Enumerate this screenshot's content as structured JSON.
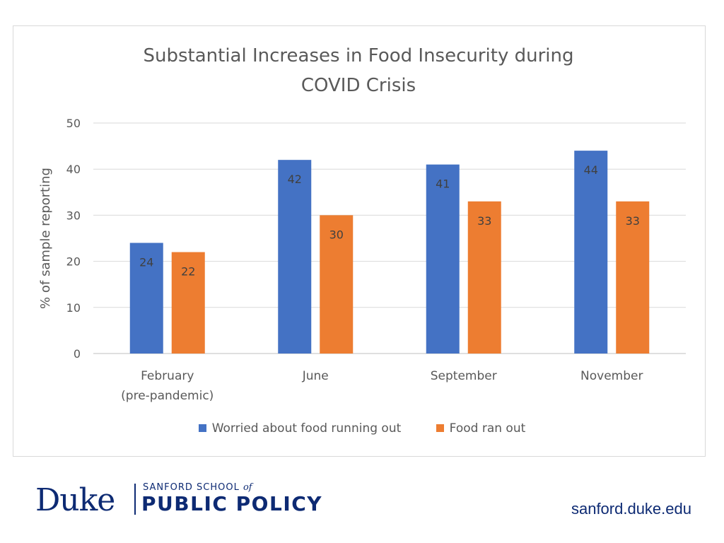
{
  "chart_data": {
    "type": "bar",
    "title_lines": [
      "Substantial Increases in Food Insecurity during",
      "COVID Crisis"
    ],
    "ylabel": "% of sample reporting",
    "xlabel": "",
    "ylim": [
      0,
      50
    ],
    "yticks": [
      0,
      10,
      20,
      30,
      40,
      50
    ],
    "categories": [
      [
        "February",
        "(pre-pandemic)"
      ],
      [
        "June"
      ],
      [
        "September"
      ],
      [
        "November"
      ]
    ],
    "series": [
      {
        "name": "Worried about food running out",
        "color": "#4472c4",
        "values": [
          24,
          42,
          41,
          44
        ]
      },
      {
        "name": "Food ran out",
        "color": "#ed7d31",
        "values": [
          22,
          30,
          33,
          33
        ]
      }
    ],
    "grid": true,
    "legend_position": "bottom"
  },
  "footer": {
    "logo_main": "Duke",
    "logo_sub_prefix": "SANFORD SCHOOL",
    "logo_sub_of": "of",
    "logo_sub_main": "PUBLIC POLICY",
    "url": "sanford.duke.edu"
  },
  "colors": {
    "brand_navy": "#0d2a73",
    "grid": "#d9d9d9",
    "text_gray": "#595959"
  }
}
